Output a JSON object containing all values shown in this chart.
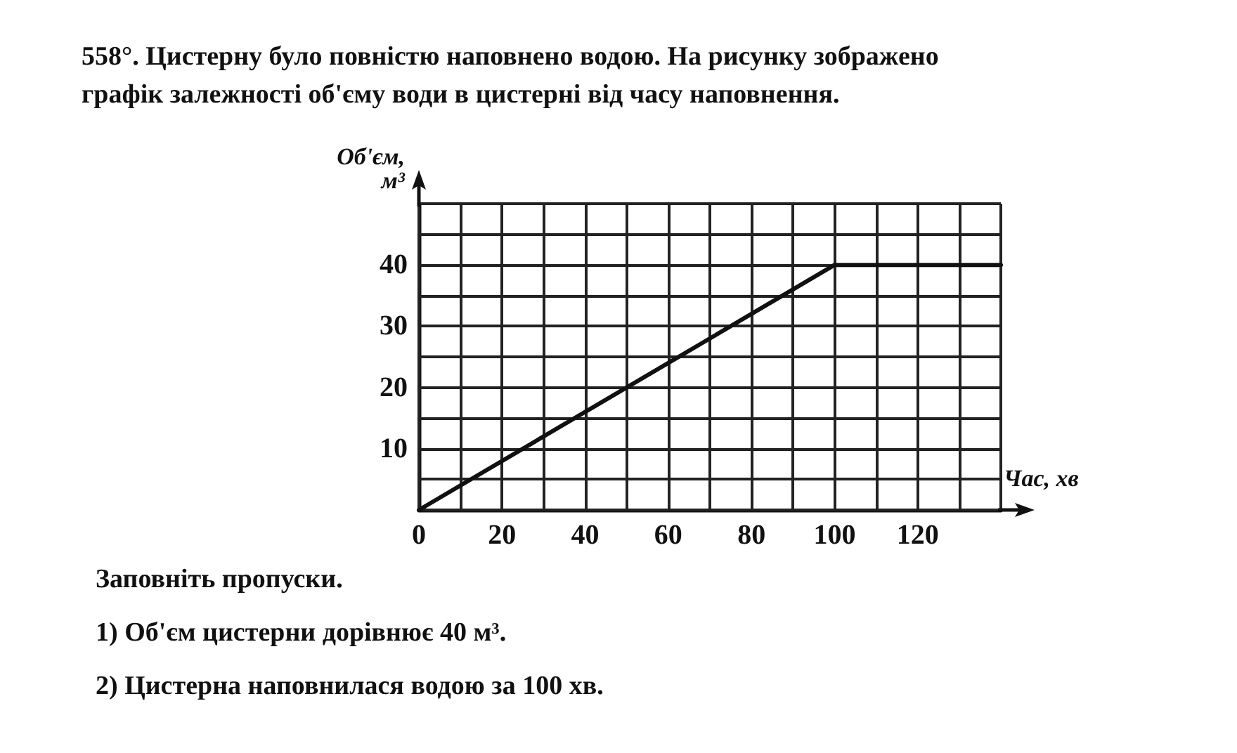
{
  "chart_data": {
    "type": "line",
    "title": "558°. Цистерну було повністю наповнено водою. На рисунку зображено\nграфік залежності об'єму води в цистерні від часу наповнення.",
    "xlabel": "Час, хв",
    "ylabel": "Об'єм,\nм³",
    "x": [
      0,
      100,
      140
    ],
    "series": [
      {
        "color": "#111111",
        "values": [
          0,
          40,
          40
        ]
      }
    ],
    "xlim": [
      0,
      140
    ],
    "ylim": [
      0,
      50
    ],
    "xticks": [
      0,
      {
        "value": 10,
        "label": null
      },
      20,
      {
        "value": 30,
        "label": null
      },
      40,
      {
        "value": 50,
        "label": null
      },
      60,
      {
        "value": 70,
        "label": null
      },
      80,
      {
        "value": 90,
        "label": null
      },
      100,
      {
        "value": 110,
        "label": null
      },
      120,
      {
        "value": 130,
        "label": null
      },
      {
        "value": 140,
        "label": null
      }
    ],
    "yticks": [
      {
        "value": 0,
        "label": null
      },
      {
        "value": 5,
        "label": null
      },
      10,
      {
        "value": 15,
        "label": null
      },
      20,
      {
        "value": 25,
        "label": null
      },
      30,
      {
        "value": 35,
        "label": null
      },
      40,
      {
        "value": 45,
        "label": null
      },
      {
        "value": 50,
        "label": null
      }
    ],
    "grid": true,
    "marker": "none",
    "line_style": "solid",
    "annotations": [
      "Заповніть пропуски.",
      "1) Об'єм цистерни дорівнює 40 м³.",
      "2) Цистерна наповнилася водою за 100 хв."
    ]
  }
}
